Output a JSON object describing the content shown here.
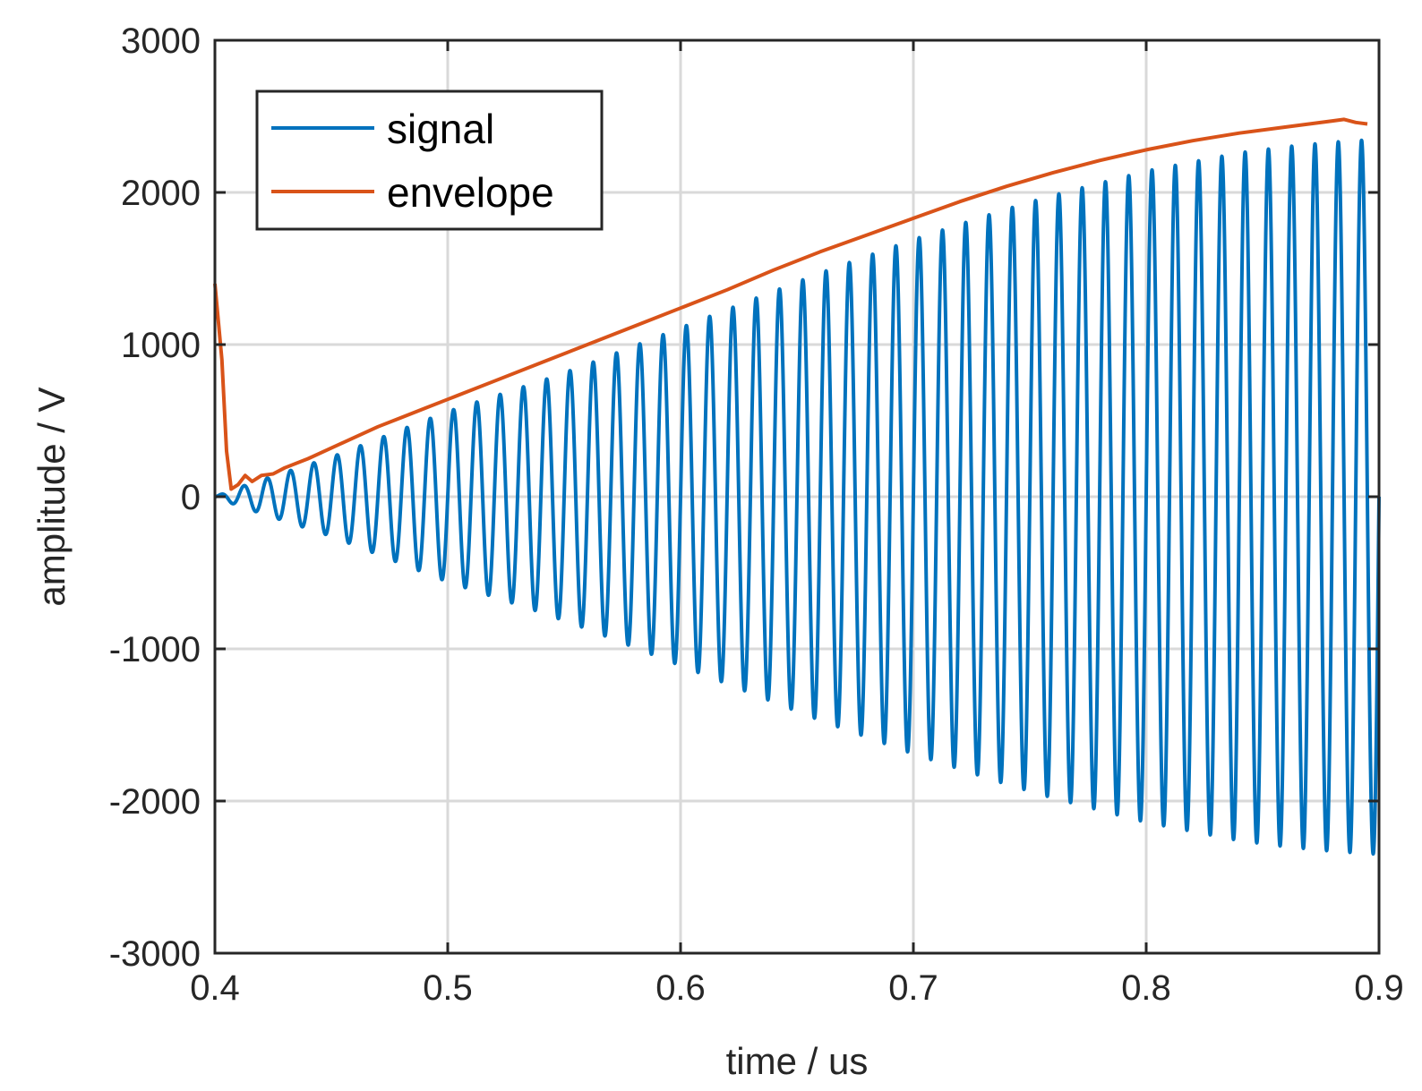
{
  "chart_data": {
    "type": "line",
    "title": "",
    "xlabel": "time / us",
    "ylabel": "amplitude / V",
    "xlim": [
      0.4,
      0.9
    ],
    "ylim": [
      -3000,
      3000
    ],
    "xticks": [
      0.4,
      0.5,
      0.6,
      0.7,
      0.8,
      0.9
    ],
    "yticks": [
      -3000,
      -2000,
      -1000,
      0,
      1000,
      2000,
      3000
    ],
    "xtick_labels": [
      "0.4",
      "0.5",
      "0.6",
      "0.7",
      "0.8",
      "0.9"
    ],
    "ytick_labels": [
      "-3000",
      "-2000",
      "-1000",
      "0",
      "1000",
      "2000",
      "3000"
    ],
    "grid": true,
    "legend_position": "top-left",
    "series": [
      {
        "name": "signal",
        "color": "#0072BD",
        "kind": "oscillation",
        "carrier_period_us": 0.01,
        "amplitude_envelope": {
          "x": [
            0.4,
            0.41,
            0.42,
            0.43,
            0.44,
            0.45,
            0.46,
            0.47,
            0.48,
            0.49,
            0.5,
            0.52,
            0.54,
            0.56,
            0.58,
            0.6,
            0.62,
            0.64,
            0.66,
            0.68,
            0.7,
            0.72,
            0.74,
            0.76,
            0.78,
            0.8,
            0.82,
            0.84,
            0.86,
            0.88,
            0.9
          ],
          "y": [
            0,
            60,
            110,
            160,
            210,
            260,
            320,
            380,
            440,
            500,
            560,
            660,
            760,
            870,
            990,
            1110,
            1230,
            1350,
            1470,
            1580,
            1690,
            1790,
            1890,
            1980,
            2060,
            2140,
            2200,
            2260,
            2300,
            2330,
            2350
          ]
        }
      },
      {
        "name": "envelope",
        "color": "#D95319",
        "x": [
          0.4,
          0.403,
          0.405,
          0.407,
          0.41,
          0.413,
          0.416,
          0.42,
          0.425,
          0.43,
          0.44,
          0.45,
          0.46,
          0.47,
          0.48,
          0.49,
          0.5,
          0.52,
          0.54,
          0.56,
          0.58,
          0.6,
          0.62,
          0.64,
          0.66,
          0.68,
          0.7,
          0.72,
          0.74,
          0.76,
          0.78,
          0.8,
          0.82,
          0.84,
          0.86,
          0.88,
          0.885,
          0.89,
          0.895
        ],
        "y": [
          1400,
          900,
          300,
          50,
          80,
          140,
          100,
          140,
          150,
          190,
          250,
          320,
          390,
          460,
          520,
          580,
          640,
          760,
          880,
          1000,
          1120,
          1240,
          1360,
          1490,
          1610,
          1720,
          1830,
          1940,
          2040,
          2130,
          2210,
          2280,
          2340,
          2390,
          2430,
          2470,
          2480,
          2460,
          2450
        ]
      }
    ]
  }
}
